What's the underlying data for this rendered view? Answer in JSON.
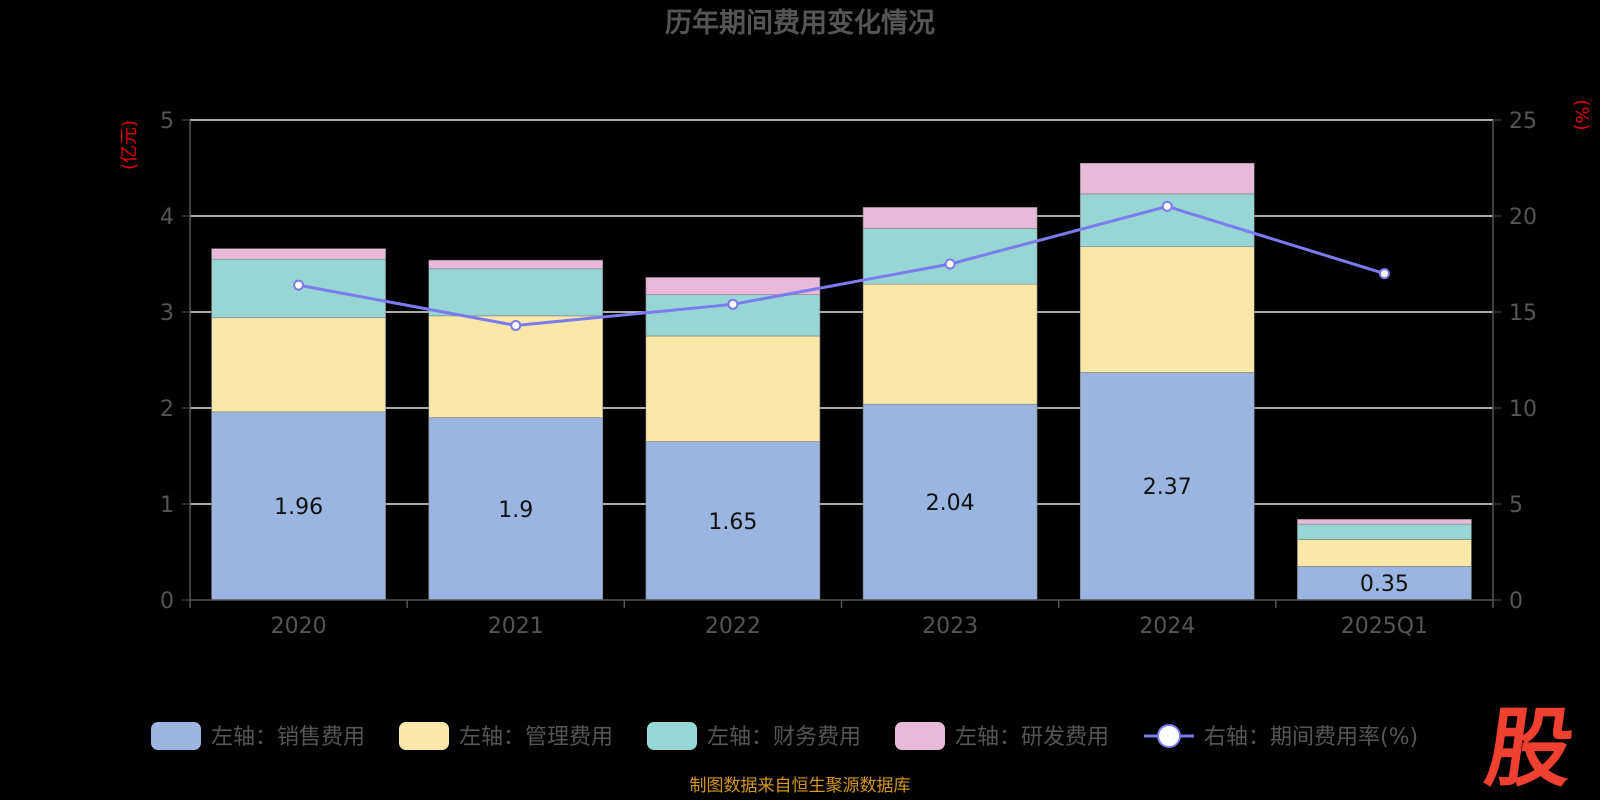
{
  "chart_data": {
    "type": "bar",
    "title": "历年期间费用变化情况",
    "categories": [
      "2020",
      "2021",
      "2022",
      "2023",
      "2024",
      "2025Q1"
    ],
    "left_axis": {
      "unit": "(亿元)",
      "ylim": [
        0,
        5
      ],
      "ticks": [
        "0",
        "1",
        "2",
        "3",
        "4",
        "5"
      ]
    },
    "right_axis": {
      "unit": "(%)",
      "ylim": [
        0,
        25
      ],
      "ticks": [
        "0",
        "5",
        "10",
        "15",
        "20",
        "25"
      ]
    },
    "series": [
      {
        "name": "左轴：销售费用",
        "axis": "left",
        "color": "#9ab5e0",
        "values": [
          1.96,
          1.9,
          1.65,
          2.04,
          2.37,
          0.35
        ],
        "labels": [
          "1.96",
          "1.9",
          "1.65",
          "2.04",
          "2.37",
          "0.35"
        ]
      },
      {
        "name": "左轴：管理费用",
        "axis": "left",
        "color": "#fae8a8",
        "values": [
          0.98,
          1.06,
          1.1,
          1.25,
          1.31,
          0.28
        ]
      },
      {
        "name": "左轴：财务费用",
        "axis": "left",
        "color": "#98d6d6",
        "values": [
          0.61,
          0.49,
          0.43,
          0.58,
          0.55,
          0.16
        ]
      },
      {
        "name": "左轴：研发费用",
        "axis": "left",
        "color": "#e8b9d8",
        "values": [
          0.11,
          0.09,
          0.18,
          0.22,
          0.32,
          0.05
        ]
      },
      {
        "name": "右轴：期间费用率(%)",
        "axis": "right",
        "type": "line",
        "color": "#7b7bee",
        "values": [
          16.4,
          14.3,
          15.4,
          17.5,
          20.5,
          17.0
        ]
      }
    ],
    "grid": true,
    "legend": "bottom"
  },
  "footer": {
    "source": "制图数据来自恒生聚源数据库",
    "logo": "股"
  }
}
